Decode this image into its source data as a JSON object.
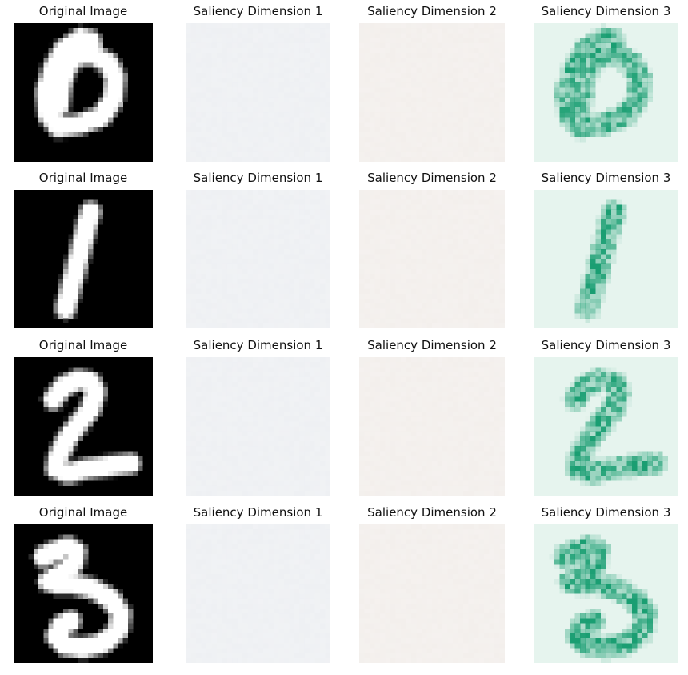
{
  "figure": {
    "rows": [
      {
        "digit": "0",
        "panels": [
          {
            "title": "Original Image",
            "kind": "original"
          },
          {
            "title": "Saliency Dimension 1",
            "kind": "flat",
            "color": "#eef0f3"
          },
          {
            "title": "Saliency Dimension 2",
            "kind": "flat",
            "color": "#f3efec"
          },
          {
            "title": "Saliency Dimension 3",
            "kind": "saliency",
            "color": "#1a9e72",
            "bg": "#e6f4ee"
          }
        ]
      },
      {
        "digit": "1",
        "panels": [
          {
            "title": "Original Image",
            "kind": "original"
          },
          {
            "title": "Saliency Dimension 1",
            "kind": "flat",
            "color": "#eef0f3"
          },
          {
            "title": "Saliency Dimension 2",
            "kind": "flat",
            "color": "#f3efec"
          },
          {
            "title": "Saliency Dimension 3",
            "kind": "saliency",
            "color": "#1a9e72",
            "bg": "#e6f4ee"
          }
        ]
      },
      {
        "digit": "2",
        "panels": [
          {
            "title": "Original Image",
            "kind": "original"
          },
          {
            "title": "Saliency Dimension 1",
            "kind": "flat",
            "color": "#eef0f3"
          },
          {
            "title": "Saliency Dimension 2",
            "kind": "flat",
            "color": "#f3efec"
          },
          {
            "title": "Saliency Dimension 3",
            "kind": "saliency",
            "color": "#1a9e72",
            "bg": "#e6f4ee"
          }
        ]
      },
      {
        "digit": "3",
        "panels": [
          {
            "title": "Original Image",
            "kind": "original"
          },
          {
            "title": "Saliency Dimension 1",
            "kind": "flat",
            "color": "#eef0f3"
          },
          {
            "title": "Saliency Dimension 2",
            "kind": "flat",
            "color": "#f3efec"
          },
          {
            "title": "Saliency Dimension 3",
            "kind": "saliency",
            "color": "#1a9e72",
            "bg": "#e6f4ee"
          }
        ]
      }
    ]
  }
}
